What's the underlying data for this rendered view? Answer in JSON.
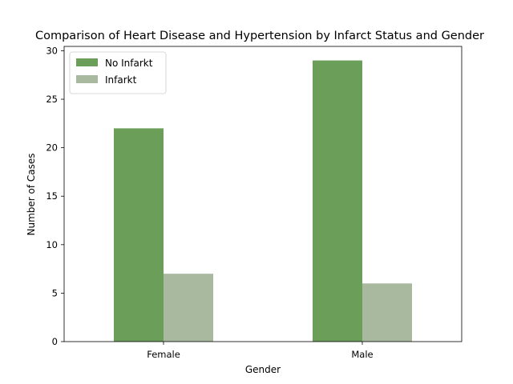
{
  "chart_data": {
    "type": "bar",
    "title": "Comparison of Heart Disease and Hypertension by Infarct Status and Gender",
    "xlabel": "Gender",
    "ylabel": "Number of Cases",
    "categories": [
      "Female",
      "Male"
    ],
    "series": [
      {
        "name": "No Infarkt",
        "values": [
          22,
          29
        ],
        "color": "#6a9e59"
      },
      {
        "name": "Infarkt",
        "values": [
          7,
          6
        ],
        "color": "#a9b9a0"
      }
    ],
    "ylim": [
      0,
      30.45
    ],
    "yticks": [
      0,
      5,
      10,
      15,
      20,
      25,
      30
    ],
    "grid": false,
    "legend_position": "top-left"
  }
}
